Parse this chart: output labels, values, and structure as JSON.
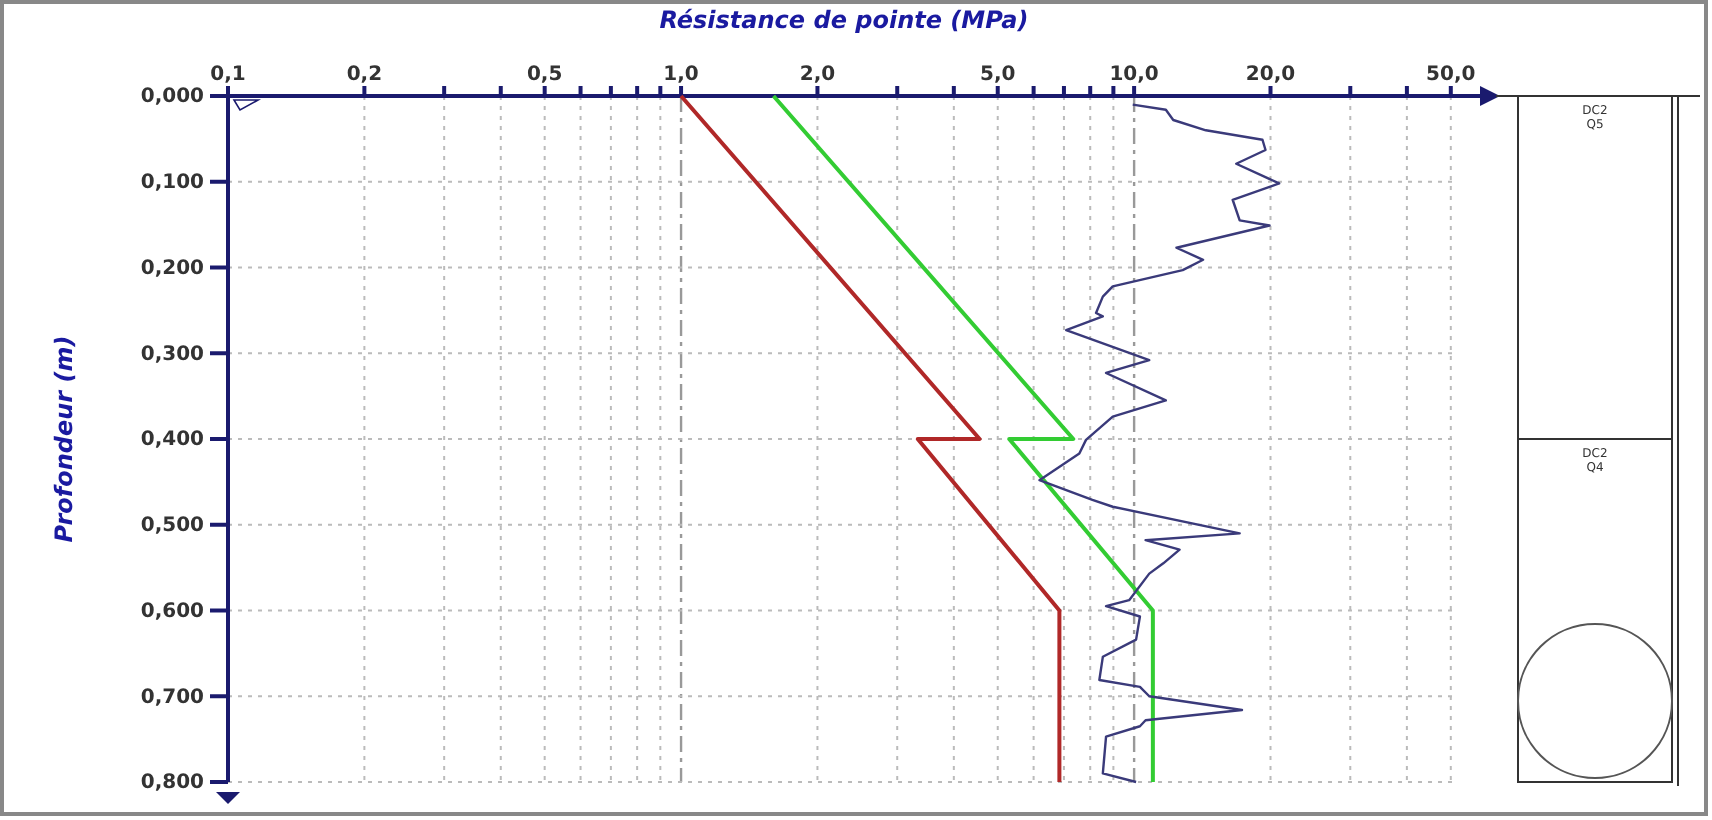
{
  "chart_data": {
    "type": "line",
    "xlabel": "Résistance de pointe (MPa)",
    "ylabel": "Profondeur (m)",
    "log": "x",
    "grid": true,
    "marker": "none",
    "line_style": "solid",
    "xlim": [
      0.1,
      58
    ],
    "ylim": [
      0.8,
      0
    ],
    "xticks": [
      {
        "value": 0.1,
        "label": "0,1"
      },
      {
        "value": 0.2,
        "label": "0,2"
      },
      {
        "value": 0.3,
        "label": null
      },
      {
        "value": 0.4,
        "label": null
      },
      {
        "value": 0.5,
        "label": "0,5"
      },
      {
        "value": 0.6,
        "label": null
      },
      {
        "value": 0.7,
        "label": null
      },
      {
        "value": 0.8,
        "label": null
      },
      {
        "value": 0.9,
        "label": null
      },
      {
        "value": 1,
        "label": "1,0"
      },
      {
        "value": 2,
        "label": "2,0"
      },
      {
        "value": 3,
        "label": null
      },
      {
        "value": 4,
        "label": null
      },
      {
        "value": 5,
        "label": "5,0"
      },
      {
        "value": 6,
        "label": null
      },
      {
        "value": 7,
        "label": null
      },
      {
        "value": 8,
        "label": null
      },
      {
        "value": 9,
        "label": null
      },
      {
        "value": 10,
        "label": "10,0"
      },
      {
        "value": 20,
        "label": "20,0"
      },
      {
        "value": 30,
        "label": null
      },
      {
        "value": 40,
        "label": null
      },
      {
        "value": 50,
        "label": "50,0"
      }
    ],
    "yticks": [
      {
        "value": 0,
        "label": "0,000"
      },
      {
        "value": 0.1,
        "label": "0,100"
      },
      {
        "value": 0.2,
        "label": "0,200"
      },
      {
        "value": 0.3,
        "label": "0,300"
      },
      {
        "value": 0.4,
        "label": "0,400"
      },
      {
        "value": 0.5,
        "label": "0,500"
      },
      {
        "value": 0.6,
        "label": "0,600"
      },
      {
        "value": 0.7,
        "label": "0,700"
      },
      {
        "value": 0.8,
        "label": "0,800"
      }
    ],
    "series": [
      {
        "color": "#b02828",
        "x": [
          1.0,
          4.56,
          3.33,
          6.84,
          6.84
        ],
        "values": [
          0,
          0.4,
          0.4,
          0.6,
          0.8
        ]
      },
      {
        "color": "#33cc33",
        "x": [
          1.6,
          7.34,
          5.3,
          11.0,
          11.0
        ],
        "values": [
          0,
          0.4,
          0.4,
          0.6,
          0.8
        ]
      },
      {
        "color": "#3a3a7a",
        "x": [
          9.93,
          11.75,
          12.2,
          14.4,
          19.2,
          19.5,
          16.8,
          20.9,
          16.5,
          17.1,
          19.9,
          12.4,
          14.2,
          12.8,
          8.97,
          8.53,
          8.24,
          8.53,
          7.08,
          10.8,
          8.67,
          11.75,
          8.97,
          7.83,
          7.57,
          6.18,
          8.09,
          8.97,
          17.1,
          10.6,
          12.6,
          11.6,
          10.8,
          9.75,
          8.67,
          10.3,
          10.1,
          8.53,
          8.38,
          10.3,
          10.8,
          17.3,
          10.6,
          10.3,
          8.67,
          8.53,
          10.1
        ],
        "values": [
          0.01,
          0.016,
          0.028,
          0.04,
          0.051,
          0.063,
          0.079,
          0.102,
          0.121,
          0.145,
          0.151,
          0.177,
          0.191,
          0.203,
          0.222,
          0.234,
          0.253,
          0.257,
          0.273,
          0.308,
          0.323,
          0.355,
          0.374,
          0.401,
          0.417,
          0.448,
          0.471,
          0.479,
          0.51,
          0.518,
          0.529,
          0.545,
          0.557,
          0.588,
          0.595,
          0.607,
          0.634,
          0.654,
          0.681,
          0.689,
          0.7,
          0.716,
          0.728,
          0.735,
          0.747,
          0.79,
          0.8
        ]
      }
    ],
    "annotations": [
      "DC2\nQ5",
      "DC2\nQ4"
    ]
  }
}
